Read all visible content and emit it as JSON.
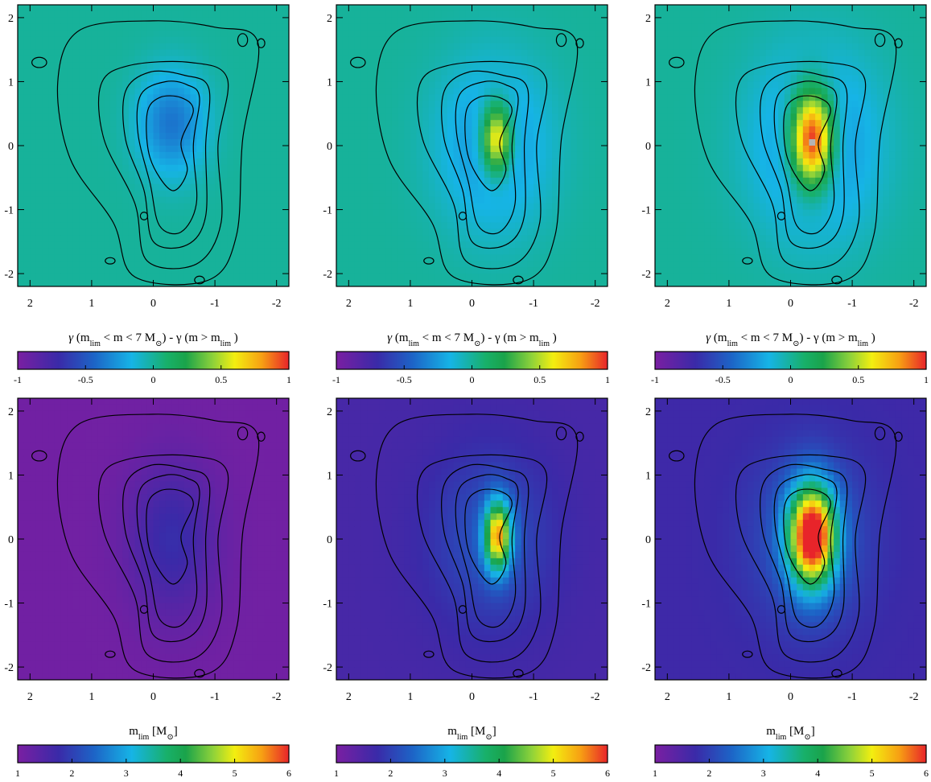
{
  "chart_data": [
    {
      "type": "heatmap",
      "panel": "top-left",
      "description_row": 1,
      "xlim": [
        2.2,
        -2.2
      ],
      "ylim": [
        -2.2,
        2.2
      ],
      "xticks": [
        "2",
        "1",
        "0",
        "-1",
        "-2"
      ],
      "yticks": [
        "2",
        "1",
        "0",
        "-1",
        "-2"
      ],
      "colormap": "rainbow",
      "clim": [
        -1,
        1
      ],
      "field": {
        "base": 0.0,
        "blobs": [
          [
            -0.3,
            0.35,
            0.55,
            0.8,
            -0.38
          ]
        ]
      },
      "gray_overflow": false
    },
    {
      "type": "heatmap",
      "panel": "top-middle",
      "xlim": [
        2.2,
        -2.2
      ],
      "ylim": [
        -2.2,
        2.2
      ],
      "xticks": [
        "2",
        "1",
        "0",
        "-1",
        "-2"
      ],
      "yticks": [
        "2",
        "1",
        "0",
        "-1",
        "-2"
      ],
      "colormap": "rainbow",
      "clim": [
        -1,
        1
      ],
      "field": {
        "base": 0.0,
        "blobs": [
          [
            -0.35,
            0.0,
            0.9,
            1.3,
            -0.3
          ],
          [
            -0.4,
            0.1,
            0.25,
            0.55,
            0.9
          ]
        ]
      },
      "gray_overflow": true
    },
    {
      "type": "heatmap",
      "panel": "top-right",
      "xlim": [
        2.2,
        -2.2
      ],
      "ylim": [
        -2.2,
        2.2
      ],
      "xticks": [
        "2",
        "1",
        "0",
        "-1",
        "-2"
      ],
      "yticks": [
        "2",
        "1",
        "0",
        "-1",
        "-2"
      ],
      "colormap": "rainbow",
      "clim": [
        -1,
        1
      ],
      "field": {
        "base": 0.0,
        "blobs": [
          [
            -0.4,
            0.0,
            1.0,
            1.4,
            -0.35
          ],
          [
            -0.35,
            0.1,
            0.35,
            0.75,
            1.3
          ]
        ]
      },
      "gray_overflow": true
    },
    {
      "type": "heatmap",
      "panel": "bottom-left",
      "xlim": [
        2.2,
        -2.2
      ],
      "ylim": [
        -2.2,
        2.2
      ],
      "xticks": [
        "2",
        "1",
        "0",
        "-1",
        "-2"
      ],
      "yticks": [
        "2",
        "1",
        "0",
        "-1",
        "-2"
      ],
      "colormap": "rainbow",
      "clim": [
        1,
        6
      ],
      "field": {
        "base": 1.1,
        "blobs": [
          [
            -0.3,
            0.0,
            0.7,
            1.2,
            0.7
          ]
        ]
      },
      "gray_overflow": false
    },
    {
      "type": "heatmap",
      "panel": "bottom-middle",
      "xlim": [
        2.2,
        -2.2
      ],
      "ylim": [
        -2.2,
        2.2
      ],
      "xticks": [
        "2",
        "1",
        "0",
        "-1",
        "-2"
      ],
      "yticks": [
        "2",
        "1",
        "0",
        "-1",
        "-2"
      ],
      "colormap": "rainbow",
      "clim": [
        1,
        6
      ],
      "field": {
        "base": 1.6,
        "blobs": [
          [
            -0.3,
            0.0,
            1.0,
            1.4,
            0.6
          ],
          [
            -0.42,
            0.05,
            0.22,
            0.55,
            3.4
          ]
        ]
      },
      "gray_overflow": false
    },
    {
      "type": "heatmap",
      "panel": "bottom-right",
      "xlim": [
        2.2,
        -2.2
      ],
      "ylim": [
        -2.2,
        2.2
      ],
      "xticks": [
        "2",
        "1",
        "0",
        "-1",
        "-2"
      ],
      "yticks": [
        "2",
        "1",
        "0",
        "-1",
        "-2"
      ],
      "colormap": "rainbow",
      "clim": [
        1,
        6
      ],
      "field": {
        "base": 1.7,
        "blobs": [
          [
            -0.3,
            0.0,
            1.0,
            1.4,
            0.6
          ],
          [
            -0.35,
            0.05,
            0.38,
            0.78,
            4.5
          ]
        ]
      },
      "gray_overflow": false
    }
  ],
  "colorbars": {
    "top": {
      "title_gamma": "γ",
      "title_middle": "(m",
      "title_sub1": "lim",
      "title_mid2": "< m < 7 M",
      "title_sun": "⊙",
      "title_tail": ") - γ (m > m",
      "title_sub2": "lim",
      "title_end": ")",
      "ticks": [
        "-1",
        "-0.5",
        "0",
        "0.5",
        "1"
      ],
      "range": [
        -1,
        1
      ]
    },
    "bottom": {
      "title_main": "m",
      "title_sub": "lim",
      "title_unit": "[M",
      "title_sun": "⊙",
      "title_close": "]",
      "ticks": [
        "1",
        "2",
        "3",
        "4",
        "5",
        "6"
      ],
      "range": [
        1,
        6
      ]
    }
  }
}
